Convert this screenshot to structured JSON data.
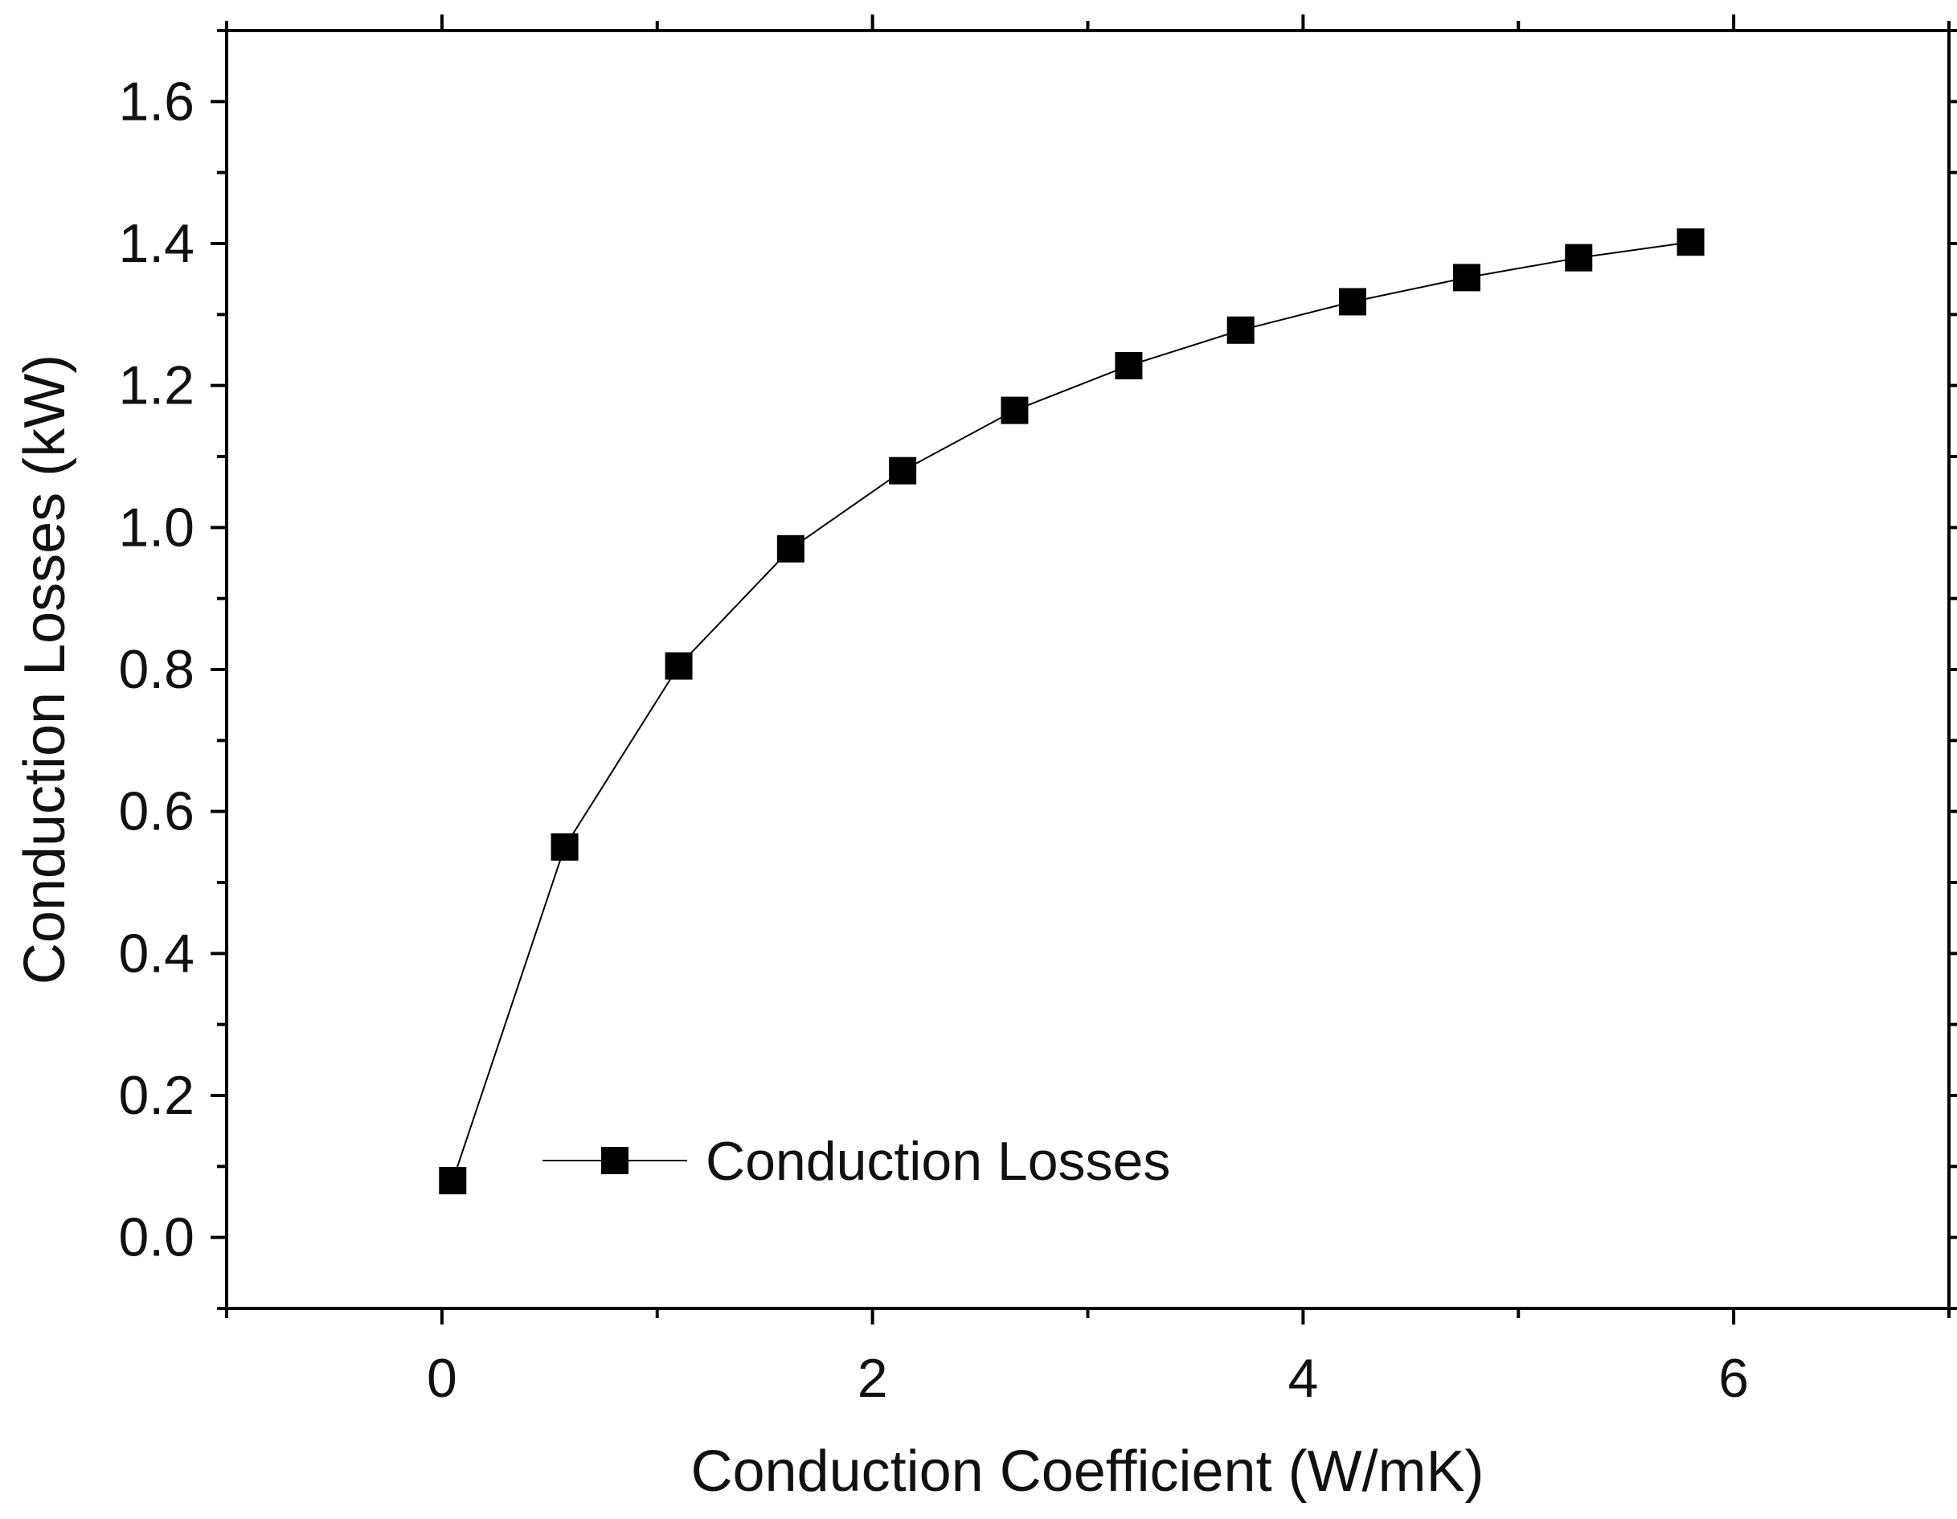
{
  "chart_data": {
    "type": "line",
    "title": "",
    "xlabel": "Conduction Coefficient (W/mK)",
    "ylabel": "Conduction Losses (kW)",
    "xlim": [
      -1,
      7
    ],
    "ylim": [
      -0.1,
      1.7
    ],
    "x_ticks": [
      0,
      2,
      4,
      6
    ],
    "x_tick_labels": [
      "0",
      "2",
      "4",
      "6"
    ],
    "y_ticks": [
      0.0,
      0.2,
      0.4,
      0.6,
      0.8,
      1.0,
      1.2,
      1.4,
      1.6
    ],
    "y_tick_labels": [
      "0.0",
      "0.2",
      "0.4",
      "0.6",
      "0.8",
      "1.0",
      "1.2",
      "1.4",
      "1.6"
    ],
    "grid": false,
    "legend_position": "lower-center",
    "series": [
      {
        "name": "Conduction Losses",
        "marker": "square",
        "color": "#000000",
        "x": [
          0.05,
          0.57,
          1.1,
          1.62,
          2.14,
          2.66,
          3.19,
          3.71,
          4.23,
          4.76,
          5.28,
          5.8
        ],
        "y": [
          0.08,
          0.55,
          0.805,
          0.97,
          1.08,
          1.165,
          1.228,
          1.278,
          1.318,
          1.352,
          1.38,
          1.402
        ]
      }
    ]
  }
}
